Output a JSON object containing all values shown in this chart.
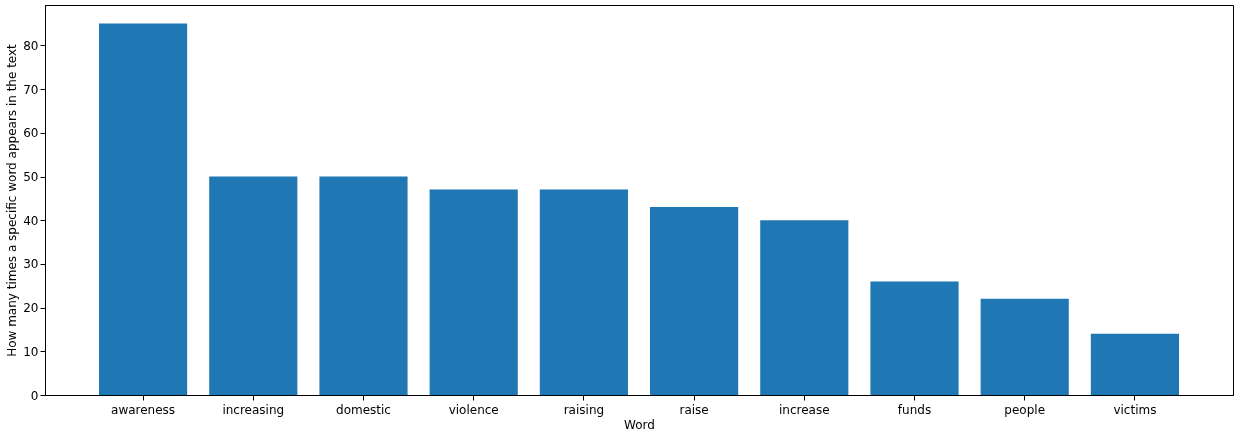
{
  "chart_data": {
    "type": "bar",
    "xlabel": "Word",
    "ylabel": "How many times a specific word appears in the text",
    "categories": [
      "awareness",
      "increasing",
      "domestic",
      "violence",
      "raising",
      "raise",
      "increase",
      "funds",
      "people",
      "victims"
    ],
    "values": [
      85,
      50,
      50,
      47,
      47,
      43,
      40,
      26,
      22,
      14
    ],
    "color": "#1f77b4",
    "ylim": [
      0,
      89.25
    ],
    "yticks": [
      0,
      10,
      20,
      30,
      40,
      50,
      60,
      70,
      80
    ],
    "grid": false
  }
}
